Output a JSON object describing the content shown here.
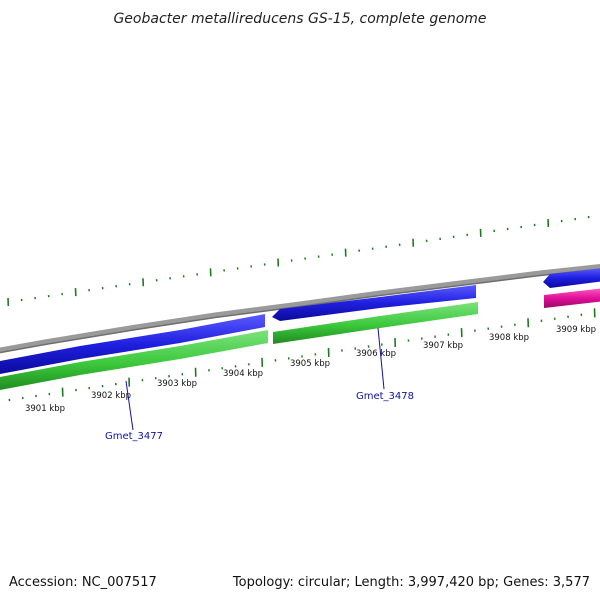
{
  "title": "Geobacter metallireducens GS-15, complete genome",
  "footer": {
    "accession": "Accession: NC_007517",
    "summary": "Topology: circular; Length: 3,997,420 bp; Genes: 3,577"
  },
  "scale_labels": [
    "3901 kbp",
    "3902 kbp",
    "3903 kbp",
    "3904 kbp",
    "3905 kbp",
    "3906 kbp",
    "3907 kbp",
    "3908 kbp",
    "3909 kbp"
  ],
  "gene_labels": [
    "Gmet_3477",
    "Gmet_3478"
  ],
  "colors": {
    "backbone": "#888888",
    "forward_cds": "#1f1fe0",
    "rna_gene": "#e0109a",
    "reverse_cds": "#3cc83c",
    "ticks": "#1f7a1f",
    "label_line": "#1010a0"
  }
}
